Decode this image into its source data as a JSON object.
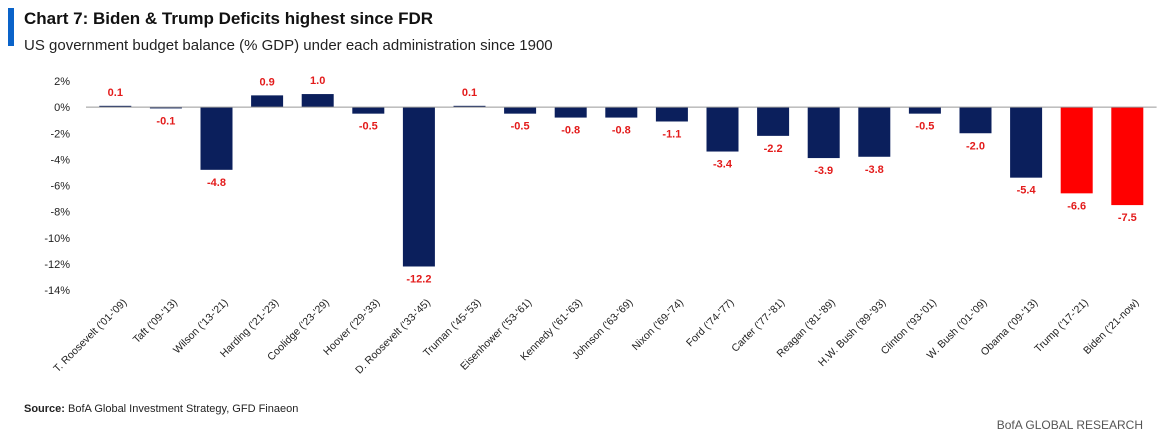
{
  "header": {
    "title": "Chart 7: Biden & Trump Deficits highest since FDR",
    "subtitle": "US government budget balance (% GDP) under each administration since 1900"
  },
  "footer": {
    "source_label": "Source:",
    "source_text": "BofA Global Investment Strategy, GFD Finaeon",
    "brand": "BofA GLOBAL RESEARCH"
  },
  "colors": {
    "bar_default": "#0b1f5c",
    "bar_highlight": "#ff0000",
    "label": "#e31b1b",
    "title_accent": "#0a63c9"
  },
  "chart_data": {
    "type": "bar",
    "categories": [
      "T. Roosevelt ('01-'09)",
      "Taft ('09-'13)",
      "Wilson ('13-'21)",
      "Harding ('21-'23)",
      "Coolidge ('23-'29)",
      "Hoover ('29-'33)",
      "D. Roosevelt ('33-'45)",
      "Truman ('45-'53)",
      "Eisenhower ('53-'61)",
      "Kennedy ('61-'63)",
      "Johnson ('63-'69)",
      "Nixon ('69-'74)",
      "Ford ('74-'77)",
      "Carter ('77-'81)",
      "Reagan ('81-'89)",
      "H.W. Bush ('89-'93)",
      "Clinton ('93-'01)",
      "W. Bush ('01-'09)",
      "Obama ('09-'13)",
      "Trump ('17-'21)",
      "Biden ('21-now)"
    ],
    "values": [
      0.1,
      -0.1,
      -4.8,
      0.9,
      1.0,
      -0.5,
      -12.2,
      0.1,
      -0.5,
      -0.8,
      -0.8,
      -1.1,
      -3.4,
      -2.2,
      -3.9,
      -3.8,
      -0.5,
      -2.0,
      -5.4,
      -6.6,
      -7.5
    ],
    "value_labels": [
      "0.1",
      "-0.1",
      "-4.8",
      "0.9",
      "1.0",
      "-0.5",
      "-12.2",
      "0.1",
      "-0.5",
      "-0.8",
      "-0.8",
      "-1.1",
      "-3.4",
      "-2.2",
      "-3.9",
      "-3.8",
      "-0.5",
      "-2.0",
      "-5.4",
      "-6.6",
      "-7.5"
    ],
    "highlight": [
      false,
      false,
      false,
      false,
      false,
      false,
      false,
      false,
      false,
      false,
      false,
      false,
      false,
      false,
      false,
      false,
      false,
      false,
      false,
      true,
      true
    ],
    "yticks": [
      2,
      0,
      -2,
      -4,
      -6,
      -8,
      -10,
      -12,
      -14
    ],
    "ytick_labels": [
      "2%",
      "0%",
      "-2%",
      "-4%",
      "-6%",
      "-8%",
      "-10%",
      "-12%",
      "-14%"
    ],
    "ylim": [
      -14,
      2
    ],
    "grid": false,
    "title": "Chart 7: Biden & Trump Deficits highest since FDR",
    "subtitle": "US government budget balance (% GDP) under each administration since 1900"
  }
}
